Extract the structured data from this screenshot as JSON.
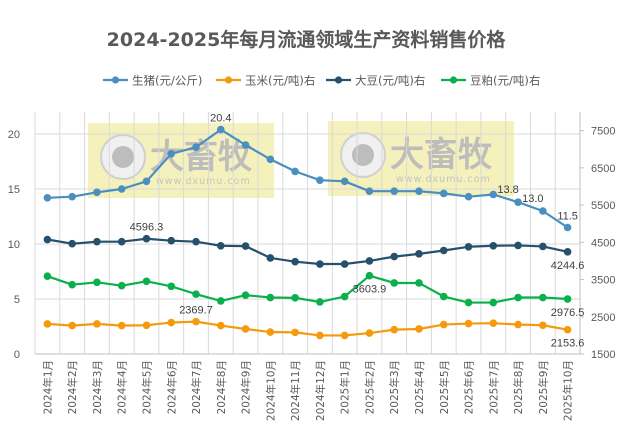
{
  "chart_data": {
    "type": "line",
    "title": "2024-2025年每月流通领域生产资料销售价格",
    "categories": [
      "2024年1月",
      "2024年2月",
      "2024年3月",
      "2024年4月",
      "2024年5月",
      "2024年6月",
      "2024年7月",
      "2024年8月",
      "2024年9月",
      "2024年10月",
      "2024年11月",
      "2024年12月",
      "2025年1月",
      "2025年2月",
      "2025年3月",
      "2025年4月",
      "2025年5月",
      "2025年6月",
      "2025年7月",
      "2025年8月",
      "2025年9月",
      "2025年10月"
    ],
    "left_axis": {
      "range": [
        0,
        22
      ],
      "ticks": [
        0,
        5,
        10,
        15,
        20
      ]
    },
    "right_axis": {
      "range": [
        1500,
        8000
      ],
      "ticks": [
        1500,
        2500,
        3500,
        4500,
        5500,
        6500,
        7500
      ]
    },
    "grid": true,
    "legend_position": "top",
    "series": [
      {
        "name": "生猪(元/公斤)",
        "axis": "left",
        "color": "#4a8fbf",
        "values": [
          14.2,
          14.3,
          14.7,
          15.0,
          15.7,
          18.2,
          18.8,
          20.4,
          19.0,
          17.7,
          16.6,
          15.8,
          15.7,
          14.8,
          14.8,
          14.8,
          14.6,
          14.3,
          14.5,
          13.8,
          13.0,
          11.5
        ]
      },
      {
        "name": "玉米(元/吨)右",
        "axis": "right",
        "color": "#f59a0c",
        "values": [
          2309,
          2263,
          2309,
          2263,
          2272,
          2345,
          2369.7,
          2263,
          2172,
          2090,
          2081,
          1999,
          1999,
          2063,
          2154,
          2172,
          2290,
          2318,
          2327,
          2290,
          2272,
          2153.6
        ]
      },
      {
        "name": "大豆(元/吨)右",
        "axis": "right",
        "color": "#26506b",
        "values": [
          4575,
          4462,
          4516,
          4516,
          4596.3,
          4543,
          4516,
          4407,
          4398,
          4080,
          3980,
          3917,
          3917,
          3999,
          4116,
          4190,
          4280,
          4380,
          4407,
          4416,
          4389,
          4244.6
        ]
      },
      {
        "name": "豆粕(元/吨)右",
        "axis": "right",
        "color": "#0ab04c",
        "values": [
          3590,
          3362,
          3426,
          3335,
          3453,
          3317,
          3108,
          2926,
          3081,
          3017,
          3008,
          2899,
          3044,
          3603.9,
          3408,
          3408,
          3044,
          2881,
          2881,
          3017,
          3017,
          2976.5
        ]
      }
    ],
    "data_labels": [
      {
        "series": 0,
        "index": 7,
        "text": "20.4",
        "position": "above"
      },
      {
        "series": 0,
        "index": 19,
        "text": "13.8",
        "position": "above-left"
      },
      {
        "series": 0,
        "index": 20,
        "text": "13.0",
        "position": "above-left"
      },
      {
        "series": 0,
        "index": 21,
        "text": "11.5",
        "position": "above"
      },
      {
        "series": 2,
        "index": 4,
        "text": "4596.3",
        "position": "above"
      },
      {
        "series": 2,
        "index": 21,
        "text": "4244.6",
        "position": "below"
      },
      {
        "series": 3,
        "index": 13,
        "text": "3603.9",
        "position": "below"
      },
      {
        "series": 3,
        "index": 21,
        "text": "2976.5",
        "position": "below"
      },
      {
        "series": 1,
        "index": 6,
        "text": "2369.7",
        "position": "above"
      },
      {
        "series": 1,
        "index": 21,
        "text": "2153.6",
        "position": "below"
      }
    ]
  },
  "watermark": {
    "logo_text": "大畜牧",
    "url": "www.dxumu.com",
    "background": "#f3eeb0"
  }
}
